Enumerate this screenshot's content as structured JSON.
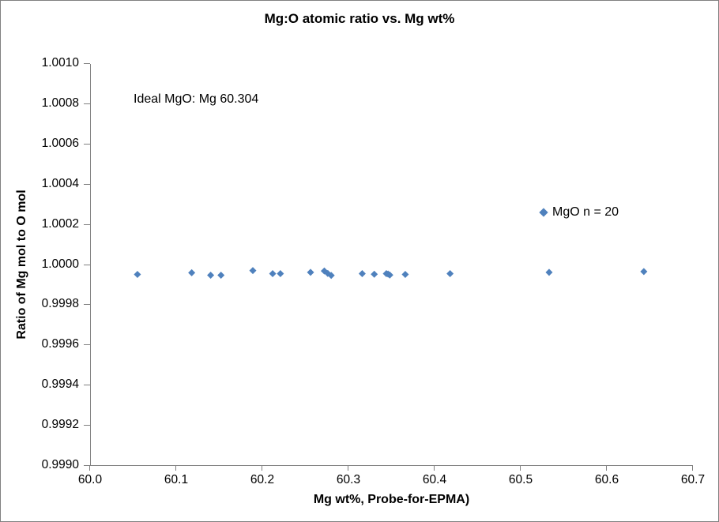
{
  "window": {
    "background": "#ffffff",
    "border_color": "#808080"
  },
  "chart_data": {
    "type": "scatter",
    "title": "Mg:O atomic ratio vs. Mg wt%",
    "xlabel": "Mg wt%, Probe-for-EPMA)",
    "ylabel": "Ratio of Mg mol to O mol",
    "annotation": "Ideal MgO: Mg 60.304",
    "xlim": [
      60.0,
      60.7
    ],
    "ylim": [
      0.999,
      1.001
    ],
    "x_ticks": [
      "60.0",
      "60.1",
      "60.2",
      "60.3",
      "60.4",
      "60.5",
      "60.6",
      "60.7"
    ],
    "y_ticks": [
      "0.9990",
      "0.9992",
      "0.9994",
      "0.9996",
      "0.9998",
      "1.0000",
      "1.0002",
      "1.0004",
      "1.0006",
      "1.0008",
      "1.0010"
    ],
    "grid": false,
    "marker_color": "#4F81BD",
    "axis_color": "#808080",
    "legend": {
      "label": "MgO n = 20",
      "position": "inside-right",
      "marker": "diamond"
    },
    "series": [
      {
        "name": "MgO n = 20",
        "marker": "diamond",
        "color": "#4F81BD",
        "points": [
          [
            60.055,
            0.999953
          ],
          [
            60.118,
            0.999961
          ],
          [
            60.14,
            0.999949
          ],
          [
            60.152,
            0.999949
          ],
          [
            60.189,
            0.999972
          ],
          [
            60.212,
            0.999957
          ],
          [
            60.221,
            0.999957
          ],
          [
            60.256,
            0.999963
          ],
          [
            60.272,
            0.99997
          ],
          [
            60.276,
            0.999958
          ],
          [
            60.28,
            0.999948
          ],
          [
            60.316,
            0.999957
          ],
          [
            60.33,
            0.999954
          ],
          [
            60.344,
            0.999957
          ],
          [
            60.346,
            0.999955
          ],
          [
            60.348,
            0.99995
          ],
          [
            60.366,
            0.999953
          ],
          [
            60.418,
            0.999957
          ],
          [
            60.533,
            0.999963
          ],
          [
            60.643,
            0.999967
          ]
        ]
      }
    ]
  }
}
